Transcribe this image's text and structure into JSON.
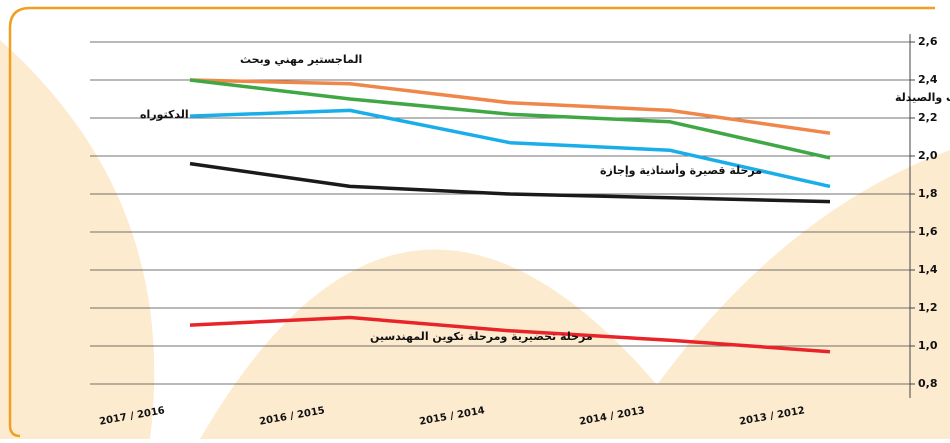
{
  "chart_data": {
    "type": "line",
    "categories": [
      "2017 / 2016",
      "2016 / 2015",
      "2015 / 2014",
      "2014 / 2013",
      "2013 / 2012"
    ],
    "series": [
      {
        "name": "دكتوراه في الطب والصيدلة",
        "color": "#f0874a",
        "values": [
          2.4,
          2.38,
          2.28,
          2.24,
          2.12
        ]
      },
      {
        "name": "الماجستير مهني وبحث",
        "color": "#3fa845",
        "values": [
          2.4,
          2.3,
          2.22,
          2.18,
          1.99
        ]
      },
      {
        "name": "الدكتوراه",
        "color": "#1aaee8",
        "values": [
          2.21,
          2.24,
          2.07,
          2.03,
          1.84
        ]
      },
      {
        "name": "مرحلة قصيرة وأستاذية وإجازة",
        "color": "#1a1a1a",
        "values": [
          1.96,
          1.84,
          1.8,
          1.78,
          1.76
        ]
      },
      {
        "name": "مرحلة تحضيرية ومرحلة تكوين المهندسين",
        "color": "#e8242a",
        "values": [
          1.11,
          1.15,
          1.08,
          1.03,
          0.97
        ]
      }
    ],
    "ylim": [
      0.8,
      2.6
    ],
    "yticks": [
      {
        "value": 0.8,
        "label": "0,8"
      },
      {
        "value": 1.0,
        "label": "1,0"
      },
      {
        "value": 1.2,
        "label": "1,2"
      },
      {
        "value": 1.4,
        "label": "1,4"
      },
      {
        "value": 1.6,
        "label": "1,6"
      },
      {
        "value": 1.8,
        "label": "1,8"
      },
      {
        "value": 2.0,
        "label": "2,0"
      },
      {
        "value": 2.2,
        "label": "2,2"
      },
      {
        "value": 2.4,
        "label": "2,4"
      },
      {
        "value": 2.6,
        "label": "2,6"
      }
    ],
    "grid": true
  }
}
